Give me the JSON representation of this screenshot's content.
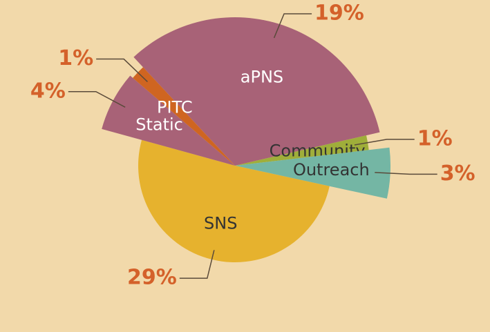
{
  "chart_data": {
    "type": "pie",
    "categories": [
      "aPNS",
      "Community",
      "Outreach",
      "SNS",
      "Static",
      "PITC"
    ],
    "values": [
      19,
      1,
      3,
      29,
      4,
      1
    ],
    "value_labels": [
      "19%",
      "1%",
      "3%",
      "29%",
      "4%",
      "1%"
    ],
    "colors": [
      "#a86277",
      "#9fae3a",
      "#74b6a4",
      "#e6b22e",
      "#a86277",
      "#cf6521"
    ]
  }
}
